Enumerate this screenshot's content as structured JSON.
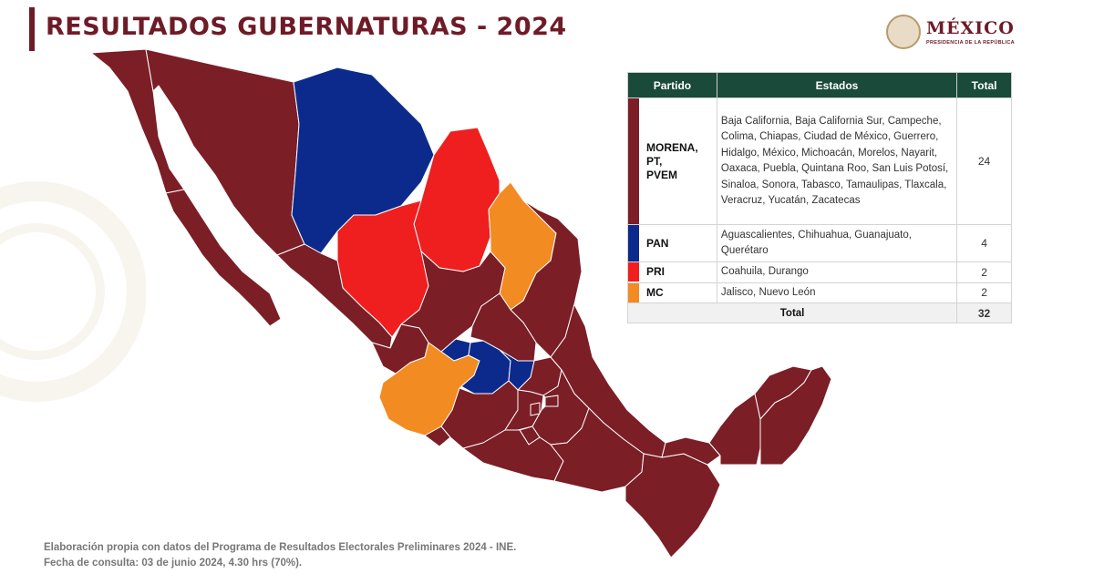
{
  "header": {
    "title": "RESULTADOS GUBERNATURAS - 2024",
    "logo_text": "MÉXICO",
    "logo_subtitle": "PRESIDENCIA DE LA REPÚBLICA"
  },
  "colors": {
    "morena": "#7b1e26",
    "pan": "#0c2a8c",
    "pri": "#ef1f1f",
    "mc": "#f28b22",
    "table_header": "#1a4a3a",
    "title": "#6e1b28"
  },
  "table": {
    "headers": {
      "party": "Partido",
      "states": "Estados",
      "total": "Total"
    },
    "rows": [
      {
        "party": "MORENA, PT, PVEM",
        "party_lines": [
          "MORENA,",
          "PT,",
          "PVEM"
        ],
        "color": "#7b1e26",
        "states": "Baja California, Baja California Sur, Campeche, Colima, Chiapas, Ciudad de México, Guerrero, Hidalgo, México, Michoacán, Morelos, Nayarit, Oaxaca, Puebla, Quintana Roo, San Luis Potosí, Sinaloa, Sonora, Tabasco, Tamaulipas, Tlaxcala, Veracruz, Yucatán, Zacatecas",
        "total": "24"
      },
      {
        "party": "PAN",
        "party_lines": [
          "PAN"
        ],
        "color": "#0c2a8c",
        "states": "Aguascalientes, Chihuahua, Guanajuato, Querétaro",
        "total": "4"
      },
      {
        "party": "PRI",
        "party_lines": [
          "PRI"
        ],
        "color": "#ef1f1f",
        "states": "Coahuila, Durango",
        "total": "2"
      },
      {
        "party": "MC",
        "party_lines": [
          "MC"
        ],
        "color": "#f28b22",
        "states": "Jalisco, Nuevo León",
        "total": "2"
      }
    ],
    "total_label": "Total",
    "total_value": "32"
  },
  "map": {
    "states": [
      {
        "id": "baja-california",
        "party": "morena"
      },
      {
        "id": "baja-california-sur",
        "party": "morena"
      },
      {
        "id": "sonora",
        "party": "morena"
      },
      {
        "id": "chihuahua",
        "party": "pan"
      },
      {
        "id": "coahuila",
        "party": "pri"
      },
      {
        "id": "nuevo-leon",
        "party": "mc"
      },
      {
        "id": "tamaulipas",
        "party": "morena"
      },
      {
        "id": "sinaloa",
        "party": "morena"
      },
      {
        "id": "durango",
        "party": "pri"
      },
      {
        "id": "zacatecas",
        "party": "morena"
      },
      {
        "id": "san-luis-potosi",
        "party": "morena"
      },
      {
        "id": "nayarit",
        "party": "morena"
      },
      {
        "id": "aguascalientes",
        "party": "pan"
      },
      {
        "id": "jalisco",
        "party": "mc"
      },
      {
        "id": "guanajuato",
        "party": "pan"
      },
      {
        "id": "queretaro",
        "party": "pan"
      },
      {
        "id": "hidalgo",
        "party": "morena"
      },
      {
        "id": "veracruz",
        "party": "morena"
      },
      {
        "id": "colima",
        "party": "morena"
      },
      {
        "id": "michoacan",
        "party": "morena"
      },
      {
        "id": "mexico",
        "party": "morena"
      },
      {
        "id": "ciudad-de-mexico",
        "party": "morena"
      },
      {
        "id": "morelos",
        "party": "morena"
      },
      {
        "id": "tlaxcala",
        "party": "morena"
      },
      {
        "id": "puebla",
        "party": "morena"
      },
      {
        "id": "guerrero",
        "party": "morena"
      },
      {
        "id": "oaxaca",
        "party": "morena"
      },
      {
        "id": "chiapas",
        "party": "morena"
      },
      {
        "id": "tabasco",
        "party": "morena"
      },
      {
        "id": "campeche",
        "party": "morena"
      },
      {
        "id": "yucatan",
        "party": "morena"
      },
      {
        "id": "quintana-roo",
        "party": "morena"
      }
    ]
  },
  "footer": {
    "line1": "Elaboración propia con datos del Programa de Resultados Electorales Preliminares 2024 - INE.",
    "line2": "Fecha de consulta: 03 de junio 2024, 4.30 hrs (70%)."
  }
}
